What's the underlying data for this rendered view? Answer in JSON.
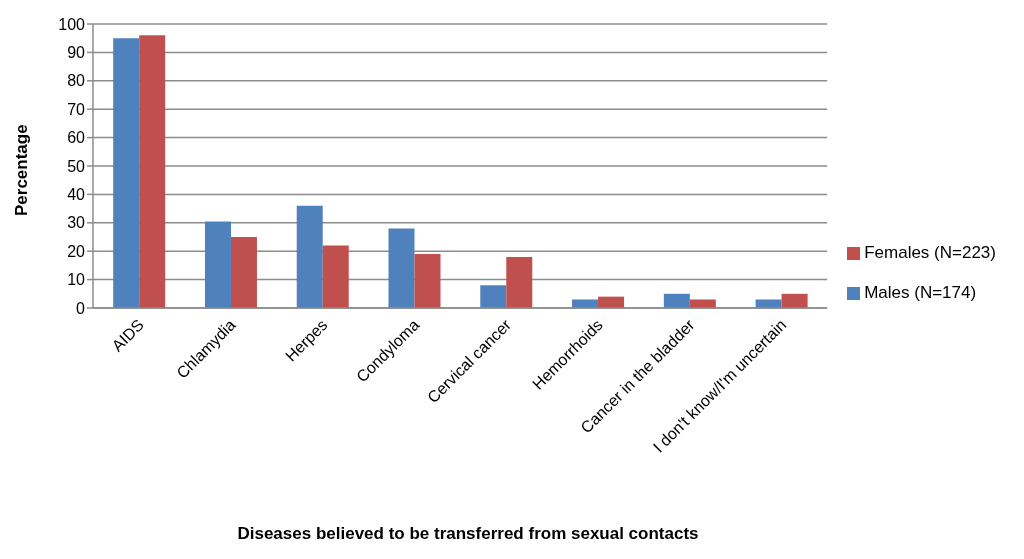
{
  "chart_data": {
    "type": "bar",
    "categories": [
      "AIDS",
      "Chlamydia",
      "Herpes",
      "Condyloma",
      "Cervical cancer",
      "Hemorrhoids",
      "Cancer in the bladder",
      "I don't know/I'm uncertain"
    ],
    "series": [
      {
        "name": "Males (N=174)",
        "color": "#4f81bd",
        "values": [
          95,
          30.5,
          36,
          28,
          8,
          3,
          5,
          3
        ]
      },
      {
        "name": "Females (N=223)",
        "color": "#c0504d",
        "values": [
          96,
          25,
          22,
          19,
          18,
          4,
          3,
          5
        ]
      }
    ],
    "xlabel": "Diseases believed to be transferred from sexual contacts",
    "ylabel": "Percentage",
    "ylim": [
      0,
      100
    ],
    "yticks": [
      0,
      10,
      20,
      30,
      40,
      50,
      60,
      70,
      80,
      90,
      100
    ],
    "grid": "y",
    "legend": "right"
  }
}
